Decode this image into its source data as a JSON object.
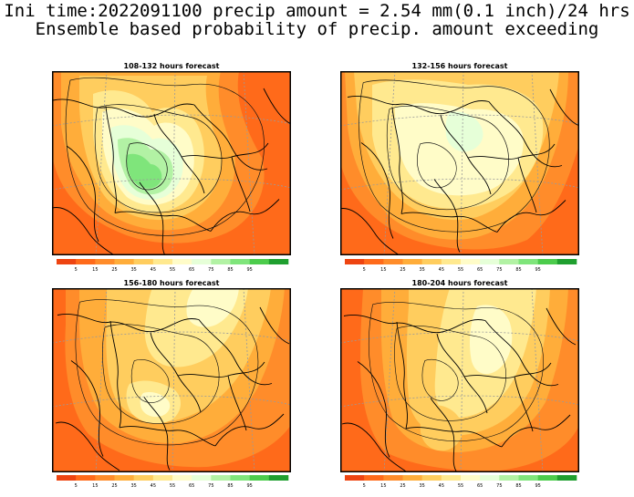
{
  "header": {
    "line1": "Ini time:2022091100 precip amount = 2.54 mm(0.1 inch)/24 hrs",
    "line2": "Ensemble based probability of precip. amount exceeding"
  },
  "colorbar": {
    "colors": [
      "#ee4411",
      "#ff6a1a",
      "#ff8c2a",
      "#ffad3a",
      "#ffcd5e",
      "#ffe98f",
      "#fffcc8",
      "#e6ffd8",
      "#b2f2a4",
      "#7fe57b",
      "#4ccc4c",
      "#1f9f2f"
    ],
    "labels": [
      "5",
      "15",
      "25",
      "35",
      "45",
      "55",
      "65",
      "75",
      "85",
      "95"
    ]
  },
  "panels": [
    {
      "title": "108-132 hours forecast",
      "variant": 0
    },
    {
      "title": "132-156 hours forecast",
      "variant": 1
    },
    {
      "title": "156-180 hours forecast",
      "variant": 2
    },
    {
      "title": "180-204 hours forecast",
      "variant": 3
    }
  ]
}
